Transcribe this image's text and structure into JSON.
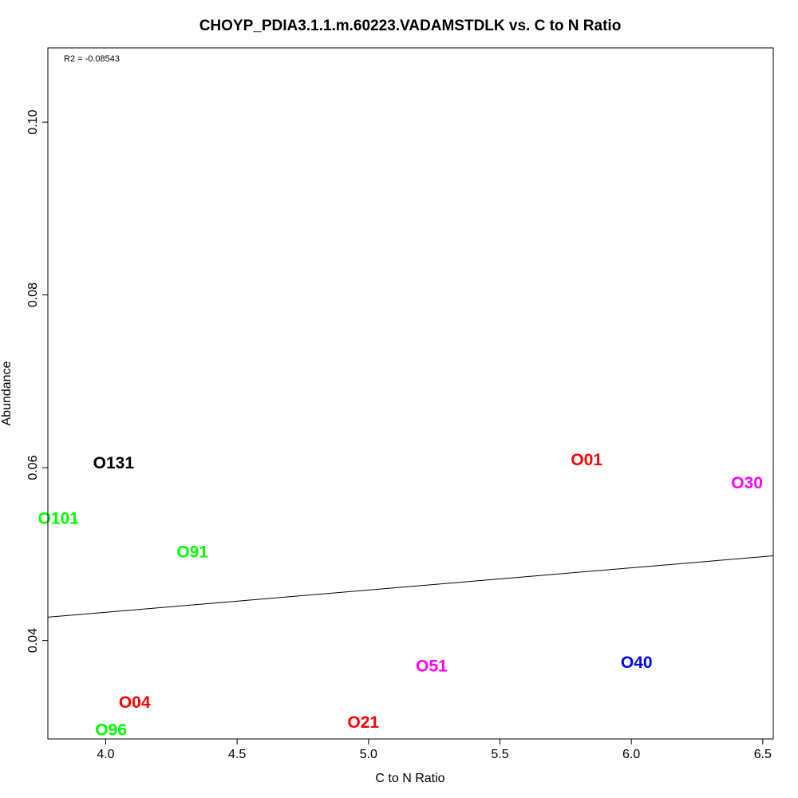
{
  "chart_data": {
    "type": "scatter",
    "title": "CHOYP_PDIA3.1.1.m.60223.VADAMSTDLK vs. C to N Ratio",
    "xlabel": "C to N Ratio",
    "ylabel": "Abundance",
    "xlim": [
      3.78,
      6.54
    ],
    "ylim": [
      0.0286,
      0.1086
    ],
    "x_ticks": [
      4.0,
      4.5,
      5.0,
      5.5,
      6.0,
      6.5
    ],
    "x_tick_labels": [
      "4.0",
      "4.5",
      "5.0",
      "5.5",
      "6.0",
      "6.5"
    ],
    "y_ticks": [
      0.04,
      0.06,
      0.08,
      0.1
    ],
    "y_tick_labels": [
      "0.04",
      "0.06",
      "0.08",
      "0.10"
    ],
    "annotation": "R2 = -0.08543",
    "grid": false,
    "points": [
      {
        "label": "O131",
        "x": 4.03,
        "y": 0.0605,
        "color": "#000000"
      },
      {
        "label": "O101",
        "x": 3.82,
        "y": 0.0541,
        "color": "#00ff00"
      },
      {
        "label": "O91",
        "x": 4.33,
        "y": 0.0502,
        "color": "#00ff00"
      },
      {
        "label": "O04",
        "x": 4.11,
        "y": 0.0328,
        "color": "#ff0000"
      },
      {
        "label": "O96",
        "x": 4.02,
        "y": 0.0296,
        "color": "#00ff00"
      },
      {
        "label": "O21",
        "x": 4.98,
        "y": 0.0305,
        "color": "#ff0000"
      },
      {
        "label": "O51",
        "x": 5.24,
        "y": 0.037,
        "color": "#ff00ff"
      },
      {
        "label": "O01",
        "x": 5.83,
        "y": 0.0609,
        "color": "#ff0000"
      },
      {
        "label": "O40",
        "x": 6.02,
        "y": 0.0374,
        "color": "#0000ff"
      },
      {
        "label": "O30",
        "x": 6.44,
        "y": 0.0582,
        "color": "#ff00ff"
      }
    ],
    "fit_line": {
      "x": [
        3.78,
        6.54
      ],
      "y": [
        0.0427,
        0.0498
      ],
      "color": "#000000"
    }
  }
}
